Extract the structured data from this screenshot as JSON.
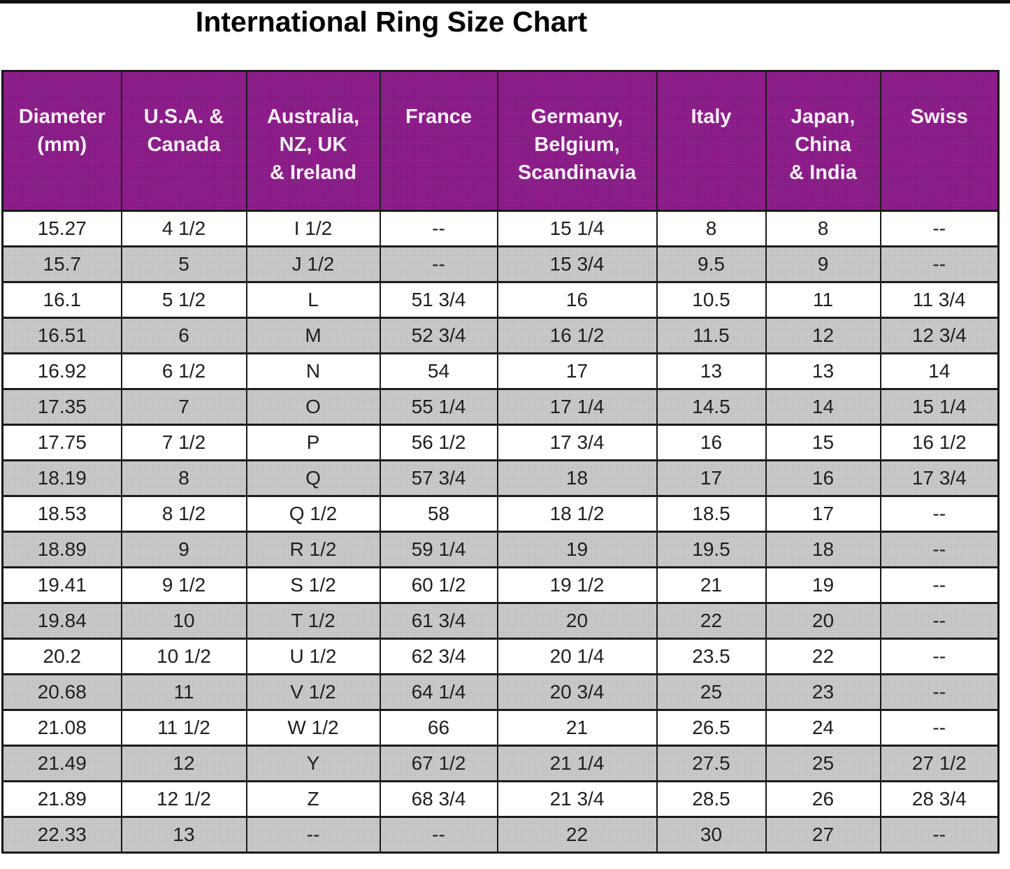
{
  "title": "International Ring Size Chart",
  "colors": {
    "header_bg": "#93218F",
    "header_text": "#FDF1FC",
    "alt_row_bg": "#CDCDCD",
    "row_bg": "#FFFFFF",
    "border": "#1B1B1B",
    "title_text": "#000000"
  },
  "chart_data": {
    "type": "table",
    "title": "International Ring Size Chart",
    "columns": [
      "Diameter\n(mm)",
      "U.S.A. &\nCanada",
      "Australia,\nNZ, UK\n& Ireland",
      "France",
      "Germany,\nBelgium,\nScandinavia",
      "Italy",
      "Japan,\nChina\n& India",
      "Swiss"
    ],
    "rows": [
      [
        "15.27",
        "4 1/2",
        "I 1/2",
        "--",
        "15 1/4",
        "8",
        "8",
        "--"
      ],
      [
        "15.7",
        "5",
        "J 1/2",
        "--",
        "15 3/4",
        "9.5",
        "9",
        "--"
      ],
      [
        "16.1",
        "5 1/2",
        "L",
        "51 3/4",
        "16",
        "10.5",
        "11",
        "11 3/4"
      ],
      [
        "16.51",
        "6",
        "M",
        "52 3/4",
        "16 1/2",
        "11.5",
        "12",
        "12 3/4"
      ],
      [
        "16.92",
        "6 1/2",
        "N",
        "54",
        "17",
        "13",
        "13",
        "14"
      ],
      [
        "17.35",
        "7",
        "O",
        "55 1/4",
        "17 1/4",
        "14.5",
        "14",
        "15 1/4"
      ],
      [
        "17.75",
        "7 1/2",
        "P",
        "56 1/2",
        "17 3/4",
        "16",
        "15",
        "16 1/2"
      ],
      [
        "18.19",
        "8",
        "Q",
        "57 3/4",
        "18",
        "17",
        "16",
        "17 3/4"
      ],
      [
        "18.53",
        "8 1/2",
        "Q 1/2",
        "58",
        "18 1/2",
        "18.5",
        "17",
        "--"
      ],
      [
        "18.89",
        "9",
        "R 1/2",
        "59 1/4",
        "19",
        "19.5",
        "18",
        "--"
      ],
      [
        "19.41",
        "9 1/2",
        "S 1/2",
        "60 1/2",
        "19 1/2",
        "21",
        "19",
        "--"
      ],
      [
        "19.84",
        "10",
        "T 1/2",
        "61 3/4",
        "20",
        "22",
        "20",
        "--"
      ],
      [
        "20.2",
        "10 1/2",
        "U 1/2",
        "62 3/4",
        "20 1/4",
        "23.5",
        "22",
        "--"
      ],
      [
        "20.68",
        "11",
        "V 1/2",
        "64 1/4",
        "20 3/4",
        "25",
        "23",
        "--"
      ],
      [
        "21.08",
        "11 1/2",
        "W 1/2",
        "66",
        "21",
        "26.5",
        "24",
        "--"
      ],
      [
        "21.49",
        "12",
        "Y",
        "67 1/2",
        "21 1/4",
        "27.5",
        "25",
        "27 1/2"
      ],
      [
        "21.89",
        "12 1/2",
        "Z",
        "68 3/4",
        "21 3/4",
        "28.5",
        "26",
        "28 3/4"
      ],
      [
        "22.33",
        "13",
        "--",
        "--",
        "22",
        "30",
        "27",
        "--"
      ]
    ]
  }
}
